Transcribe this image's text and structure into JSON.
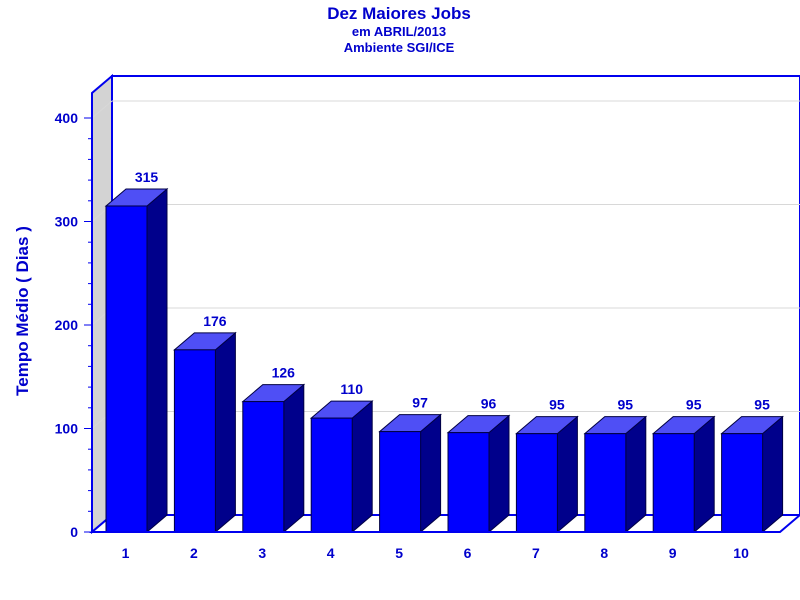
{
  "chart_data": {
    "type": "bar",
    "title": "Dez Maiores Jobs",
    "subtitle_lines": [
      "em ABRIL/2013",
      "Ambiente SGI/ICE"
    ],
    "xlabel": "",
    "ylabel": "Tempo Médio ( Dias )",
    "categories": [
      "1",
      "2",
      "3",
      "4",
      "5",
      "6",
      "7",
      "8",
      "9",
      "10"
    ],
    "values": [
      315,
      176,
      126,
      110,
      97,
      96,
      95,
      95,
      95,
      95
    ],
    "data_labels": [
      "315",
      "176",
      "126",
      "110",
      "97",
      "96",
      "95",
      "95",
      "95",
      "95"
    ],
    "ylim": [
      0,
      400
    ],
    "yticks": [
      0,
      100,
      200,
      300,
      400
    ],
    "ytick_labels": [
      "0",
      "100",
      "200",
      "300",
      "400"
    ],
    "grid": true,
    "legend": "none",
    "colors": {
      "bar_front": "#0000ff",
      "bar_top": "#4f4ff5",
      "bar_side": "#00008b",
      "text": "#0000cc",
      "frame": "#0000ee",
      "wall": "#d3d3d3",
      "grid": "#d8d8d8"
    }
  }
}
